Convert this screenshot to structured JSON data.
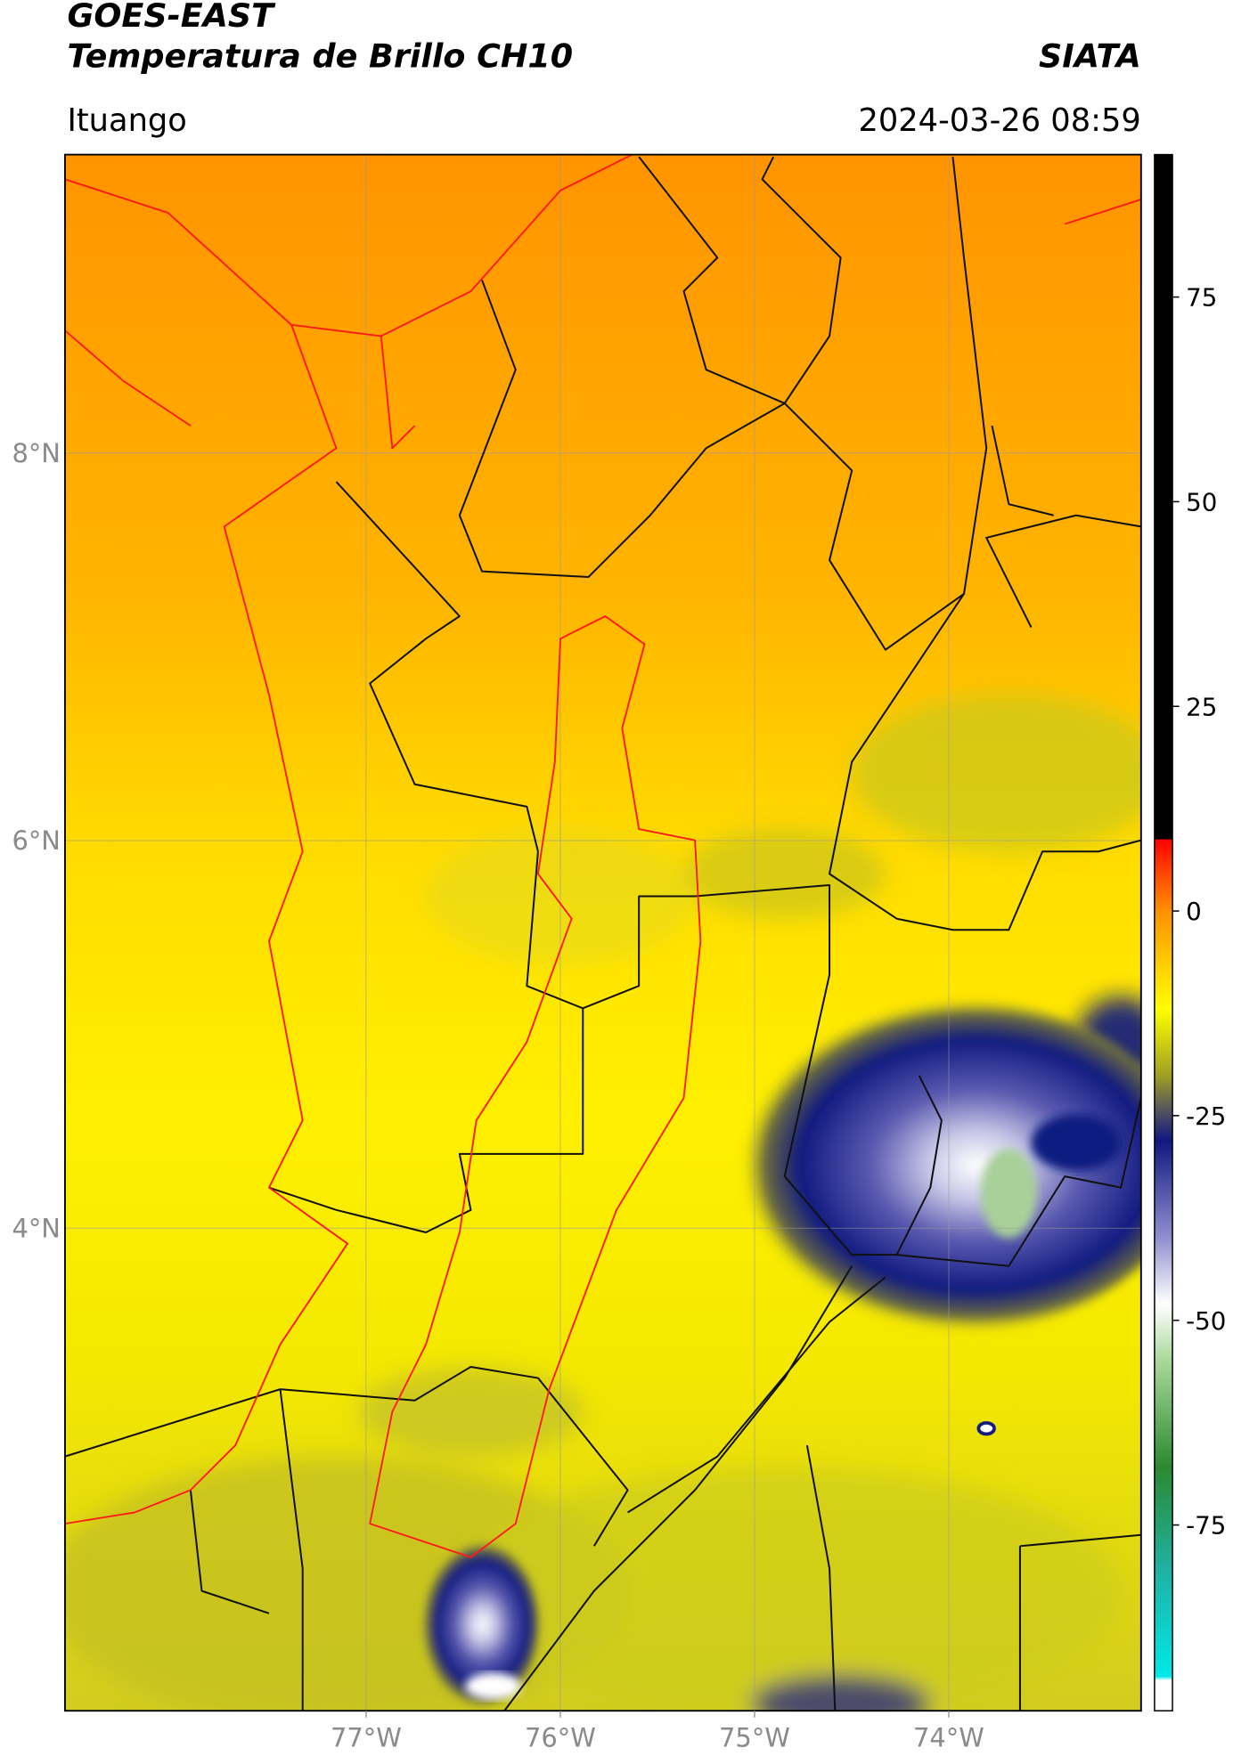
{
  "header": {
    "source": "GOES-EAST",
    "product": "Temperatura de Brillo CH10",
    "organization": "SIATA",
    "region": "Ituango",
    "datetime": "2024-03-26 08:59"
  },
  "map": {
    "xlim": [
      -78.55,
      -73.01
    ],
    "ylim": [
      1.51,
      9.54
    ],
    "xticks": [
      {
        "value": -77,
        "label": "77°W"
      },
      {
        "value": -76,
        "label": "76°W"
      },
      {
        "value": -75,
        "label": "75°W"
      },
      {
        "value": -74,
        "label": "74°W"
      }
    ],
    "yticks": [
      {
        "value": 4,
        "label": "4°N"
      },
      {
        "value": 6,
        "label": "6°N"
      },
      {
        "value": 8,
        "label": "8°N"
      }
    ],
    "grid": true
  },
  "colorbar": {
    "lim": [
      -97.7,
      92.4
    ],
    "ticks": [
      -75,
      -50,
      -25,
      0,
      25,
      50,
      75
    ],
    "colormap": [
      {
        "value": -97.7,
        "color": "#ffffff"
      },
      {
        "value": -94,
        "color": "#ffffff"
      },
      {
        "value": -93.5,
        "color": "#00e8e8"
      },
      {
        "value": -80,
        "color": "#20b0a0"
      },
      {
        "value": -68,
        "color": "#2a8a30"
      },
      {
        "value": -55,
        "color": "#a8d898"
      },
      {
        "value": -48,
        "color": "#ffffff"
      },
      {
        "value": -40,
        "color": "#9090d0"
      },
      {
        "value": -28,
        "color": "#101880"
      },
      {
        "value": -24,
        "color": "#5a5a5a"
      },
      {
        "value": -20,
        "color": "#a0a020"
      },
      {
        "value": -12,
        "color": "#ffff00"
      },
      {
        "value": 0,
        "color": "#ff9000"
      },
      {
        "value": 6,
        "color": "#ff3000"
      },
      {
        "value": 8.7,
        "color": "#ff0000"
      },
      {
        "value": 8.8,
        "color": "#000000"
      },
      {
        "value": 92.4,
        "color": "#000000"
      }
    ]
  }
}
